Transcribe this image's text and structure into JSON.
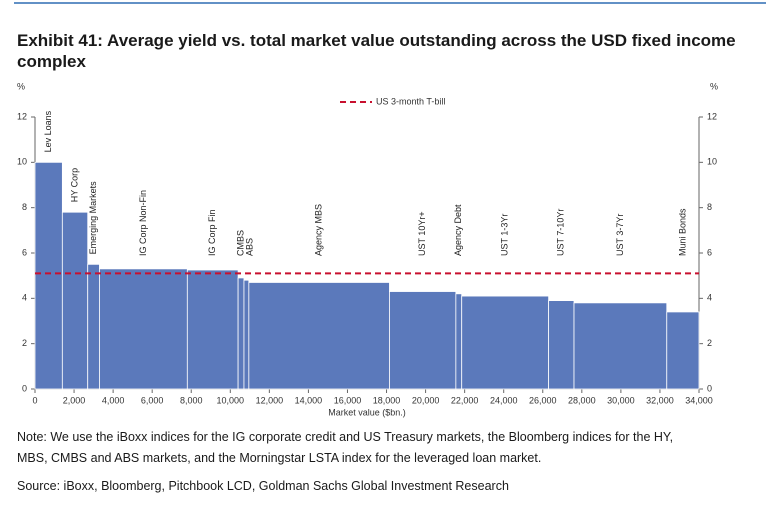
{
  "title_lines": [
    "Exhibit 41: Average yield vs. total market value outstanding across the USD fixed income",
    "complex"
  ],
  "chart_data": {
    "type": "variable_width_bar",
    "y_label": "%",
    "y2_label": "%",
    "x_label": "Market value ($bn.)",
    "categories": [
      "Lev Loans",
      "HY Corp",
      "Emerging Markets",
      "IG Corp Non-Fin",
      "IG Corp Fin",
      "CMBS",
      "ABS",
      "Agency MBS",
      "UST 10Yr+",
      "Agency Debt",
      "UST 1-3Yr",
      "UST 7-10Yr",
      "UST 3-7Yr",
      "Muni Bonds"
    ],
    "widths": [
      1400,
      1300,
      600,
      4500,
      2600,
      300,
      250,
      7200,
      3400,
      300,
      4450,
      1300,
      4750,
      1650
    ],
    "values": [
      10.0,
      7.8,
      5.5,
      5.3,
      5.25,
      4.9,
      4.8,
      4.7,
      4.3,
      4.2,
      4.1,
      3.9,
      3.8,
      3.4
    ],
    "color": "#5b79bb",
    "reference_lines": [
      {
        "name": "US 3-month T-bill",
        "value": 5.1,
        "color": "#c8102e"
      }
    ],
    "xlim": [
      0,
      34000
    ],
    "xticks": [
      0,
      {
        "value": 2000,
        "label": "2,000"
      },
      {
        "value": 4000,
        "label": "4,000"
      },
      {
        "value": 6000,
        "label": "6,000"
      },
      {
        "value": 8000,
        "label": "8,000"
      },
      {
        "value": 10000,
        "label": "10,000"
      },
      {
        "value": 12000,
        "label": "12,000"
      },
      {
        "value": 14000,
        "label": "14,000"
      },
      {
        "value": 16000,
        "label": "16,000"
      },
      {
        "value": 18000,
        "label": "18,000"
      },
      {
        "value": 20000,
        "label": "20,000"
      },
      {
        "value": 22000,
        "label": "22,000"
      },
      {
        "value": 24000,
        "label": "24,000"
      },
      {
        "value": 26000,
        "label": "26,000"
      },
      {
        "value": 28000,
        "label": "28,000"
      },
      {
        "value": 30000,
        "label": "30,000"
      },
      {
        "value": 32000,
        "label": "32,000"
      },
      {
        "value": 34000,
        "label": "34,000"
      }
    ],
    "ylim": [
      0,
      12
    ],
    "yticks": [
      0,
      2,
      4,
      6,
      8,
      10,
      12
    ],
    "y2lim": [
      0,
      12
    ],
    "y2ticks": [
      0,
      2,
      4,
      6,
      8,
      10,
      12
    ]
  },
  "note_lines": [
    "Note: We use the iBoxx indices for the IG corporate credit and US Treasury markets, the Bloomberg indices for the HY,",
    "MBS, CMBS and ABS markets, and the Morningstar LSTA index for the leveraged loan market."
  ],
  "source": "Source: iBoxx, Bloomberg, Pitchbook LCD, Goldman Sachs Global Investment Research"
}
